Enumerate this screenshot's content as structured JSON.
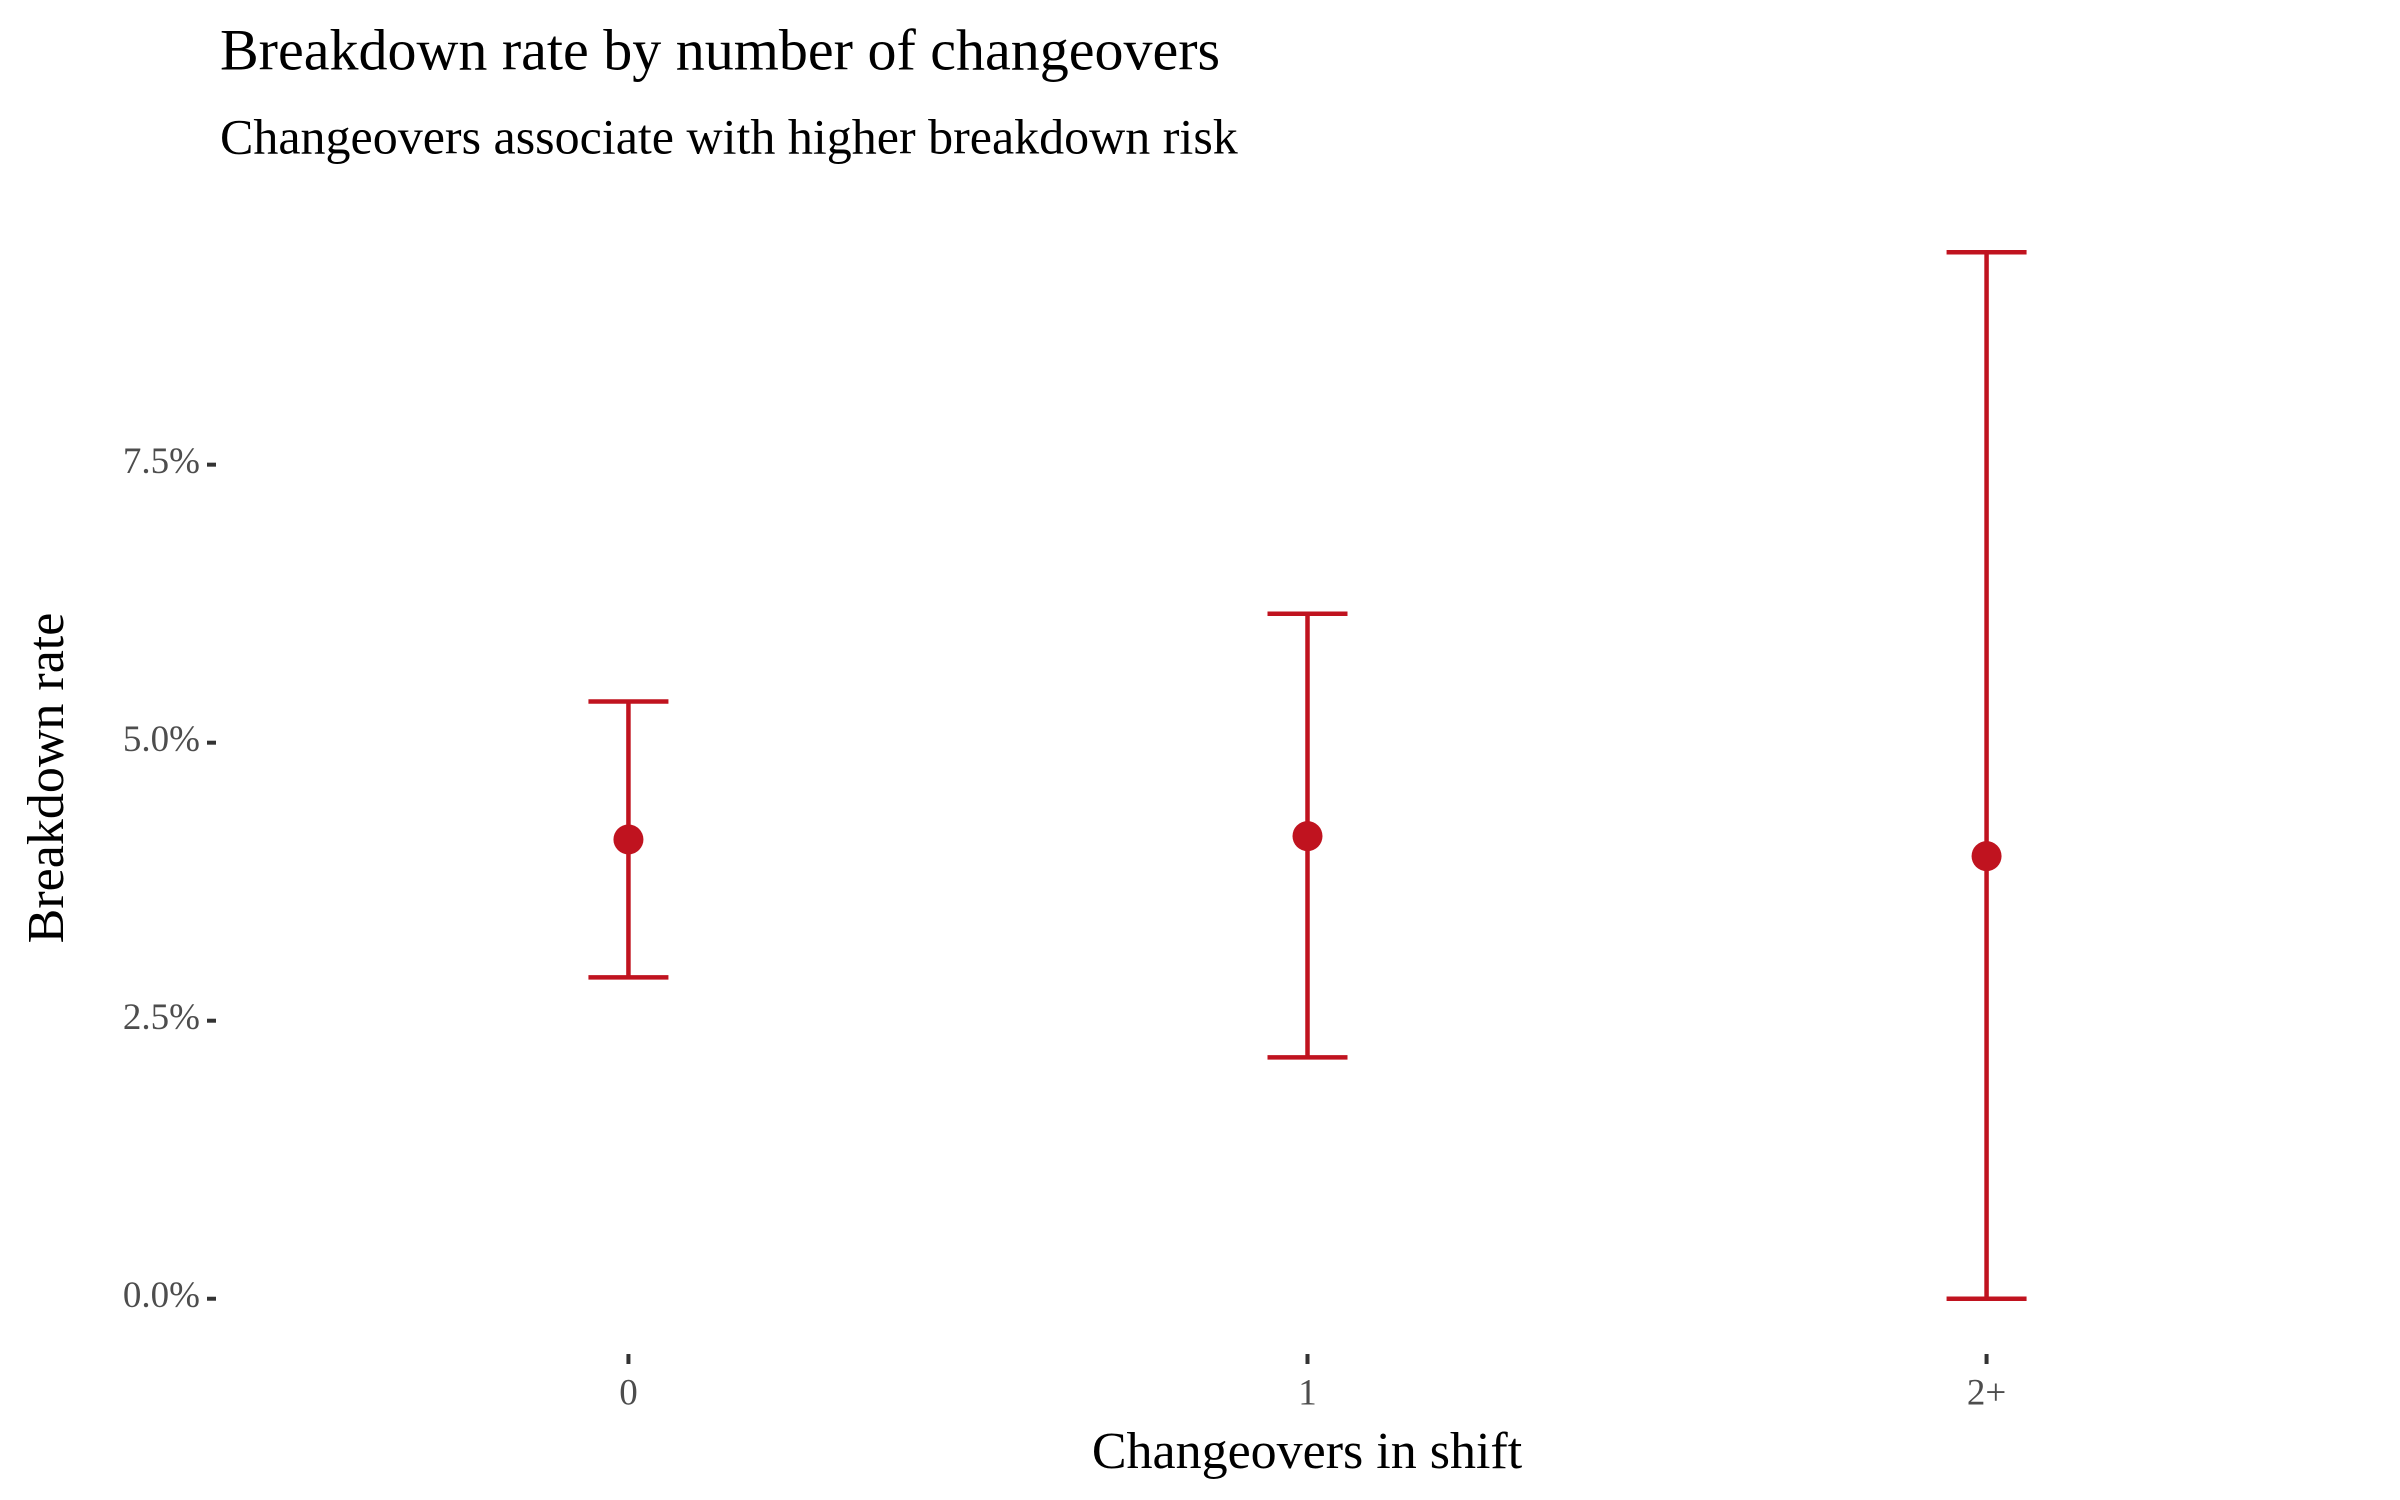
{
  "chart_data": {
    "type": "errorbar",
    "title": "Breakdown rate by number of changeovers",
    "subtitle": "Changeovers associate with higher breakdown risk",
    "x_label": "Changeovers in shift",
    "y_label": "Breakdown rate",
    "categories": [
      "0",
      "1",
      "2+"
    ],
    "values": [
      4.13,
      4.16,
      3.98
    ],
    "lower": [
      2.89,
      2.17,
      0
    ],
    "upper": [
      5.37,
      6.16,
      9.41
    ],
    "color": "#c0131f",
    "ylim": [
      -0.47,
      9.88
    ],
    "yticks": [
      {
        "value": 0,
        "label": "0.0%"
      },
      {
        "value": 2.5,
        "label": "2.5%"
      },
      {
        "value": 5,
        "label": "5.0%"
      },
      {
        "value": 7.5,
        "label": "7.5%"
      }
    ],
    "grid": false
  }
}
